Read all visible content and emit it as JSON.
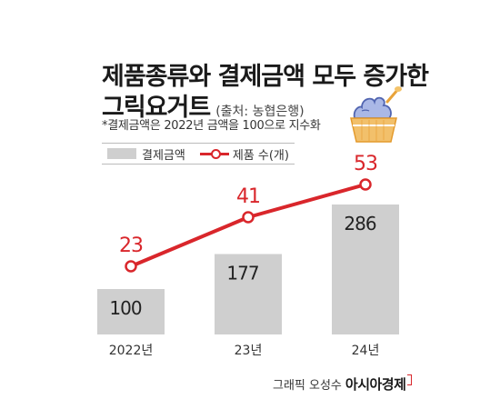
{
  "title": {
    "line1": "제품종류와 결제금액 모두 증가한",
    "line2": "그릭요거트",
    "source": "(출처: 농협은행)"
  },
  "note": "*결제금액은 2022년 금액을 100으로 지수화",
  "legend": {
    "bar": "결제금액",
    "line": "제품 수(개)"
  },
  "credit": {
    "prefix": "그래픽 오성수",
    "brand": "아시아경제"
  },
  "colors": {
    "bar": "#cfcfcf",
    "line": "#d9262b",
    "text": "#1a1a1a"
  },
  "icon": "yogurt-cup-icon",
  "chart_data": {
    "type": "bar",
    "categories": [
      "2022년",
      "23년",
      "24년"
    ],
    "series": [
      {
        "name": "결제금액",
        "type": "bar",
        "values": [
          100,
          177,
          286
        ]
      },
      {
        "name": "제품 수(개)",
        "type": "line",
        "values": [
          23,
          41,
          53
        ]
      }
    ],
    "title": "제품종류와 결제금액 모두 증가한 그릭요거트",
    "legend_position": "top-left",
    "grid": false
  }
}
